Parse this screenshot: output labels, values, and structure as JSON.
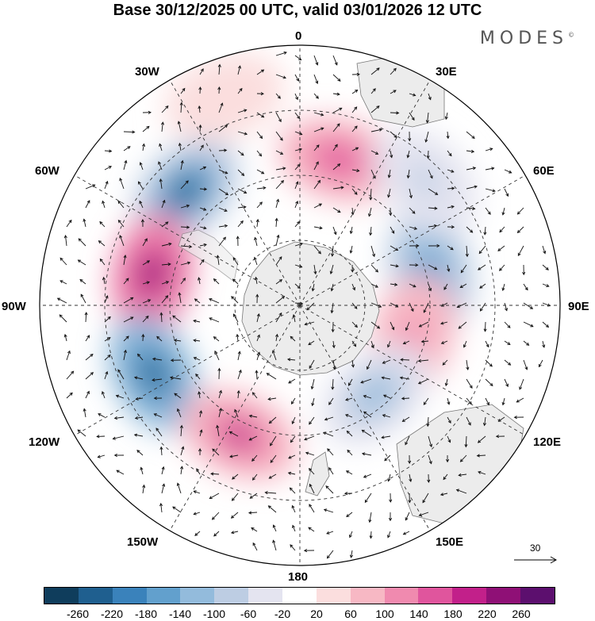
{
  "title": "Base 30/12/2025 00 UTC, valid 03/01/2026 12 UTC",
  "brand": "MODES",
  "brand_mark": "©",
  "longitude_labels": {
    "lon_0": "0",
    "lon_30e": "30E",
    "lon_60e": "60E",
    "lon_90e": "90E",
    "lon_120e": "120E",
    "lon_150e": "150E",
    "lon_180": "180",
    "lon_150w": "150W",
    "lon_120w": "120W",
    "lon_90w": "90W",
    "lon_60w": "60W",
    "lon_30w": "30W"
  },
  "reference_vector": {
    "value": "30"
  },
  "colorbar": {
    "colors": [
      "#0f3d5c",
      "#1f5f8f",
      "#3a82bb",
      "#62a0cd",
      "#93bbdc",
      "#bdcde3",
      "#e4e4f0",
      "#ffffff",
      "#fbdede",
      "#f7b8c4",
      "#f08aaf",
      "#e0559d",
      "#c2208a",
      "#8f1076",
      "#5c0f6e"
    ],
    "ticks": [
      "-260",
      "-220",
      "-180",
      "-140",
      "-100",
      "-60",
      "-20",
      "20",
      "60",
      "100",
      "140",
      "180",
      "220",
      "260"
    ]
  },
  "anomaly_field": [
    {
      "name": "anomaly-positive",
      "lon": 15,
      "dist": 0.58,
      "value": 180
    },
    {
      "name": "anomaly-negative",
      "lon": -45,
      "dist": 0.62,
      "value": -220
    },
    {
      "name": "anomaly-positive",
      "lon": -78,
      "dist": 0.58,
      "value": 240
    },
    {
      "name": "anomaly-negative",
      "lon": -115,
      "dist": 0.62,
      "value": -240
    },
    {
      "name": "anomaly-positive",
      "lon": -155,
      "dist": 0.55,
      "value": 200
    },
    {
      "name": "anomaly-negative",
      "lon": 75,
      "dist": 0.52,
      "value": -160
    },
    {
      "name": "anomaly-positive",
      "lon": 105,
      "dist": 0.45,
      "value": 140
    },
    {
      "name": "anomaly-negative",
      "lon": 140,
      "dist": 0.45,
      "value": -120
    },
    {
      "name": "anomaly-negative",
      "lon": 45,
      "dist": 0.68,
      "value": -80
    },
    {
      "name": "anomaly-positive",
      "lon": -20,
      "dist": 0.85,
      "value": 60
    }
  ]
}
